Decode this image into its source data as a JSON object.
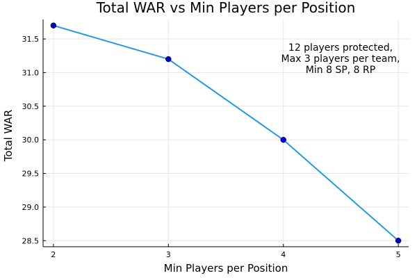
{
  "chart_data": {
    "type": "line",
    "title": "Total WAR vs Min Players per Position",
    "xlabel": "Min Players per Position",
    "ylabel": "Total WAR",
    "x": [
      2,
      3,
      4,
      5
    ],
    "series": [
      {
        "values": [
          31.7,
          31.2,
          30.0,
          28.5
        ],
        "color": "#1f9ae8",
        "marker_color": "#0000cc"
      }
    ],
    "xlim": [
      1.91,
      5.09
    ],
    "ylim": [
      28.41,
      31.79
    ],
    "x_ticks": [
      "2",
      "3",
      "4",
      "5"
    ],
    "y_ticks": [
      "28.5",
      "29.0",
      "29.5",
      "30.0",
      "30.5",
      "31.0",
      "31.5"
    ],
    "grid": true,
    "legend": "none",
    "annotation": {
      "lines": [
        "12 players protected,",
        "Max 3 players per team,",
        "Min 8 SP, 8 RP"
      ],
      "placement": "top-right"
    }
  }
}
